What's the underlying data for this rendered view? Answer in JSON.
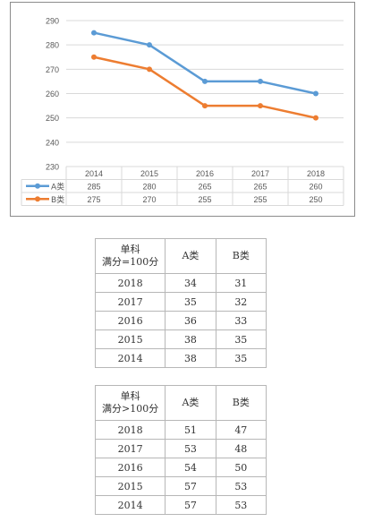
{
  "chart_data": {
    "type": "line",
    "categories": [
      "2014",
      "2015",
      "2016",
      "2017",
      "2018"
    ],
    "series": [
      {
        "name": "A类",
        "values": [
          285,
          280,
          265,
          265,
          260
        ],
        "color": "#5b9bd5"
      },
      {
        "name": "B类",
        "values": [
          275,
          270,
          255,
          255,
          250
        ],
        "color": "#ed7d31"
      }
    ],
    "ylim": [
      230,
      290
    ],
    "yticks": [
      230,
      240,
      250,
      260,
      270,
      280,
      290
    ],
    "grid": true,
    "legend": "data table below chart"
  },
  "tables": [
    {
      "header": [
        "单科\n满分=100分",
        "A类",
        "B类"
      ],
      "rows": [
        [
          "2018",
          "34",
          "31"
        ],
        [
          "2017",
          "35",
          "32"
        ],
        [
          "2016",
          "36",
          "33"
        ],
        [
          "2015",
          "38",
          "35"
        ],
        [
          "2014",
          "38",
          "35"
        ]
      ]
    },
    {
      "header": [
        "单科\n满分>100分",
        "A类",
        "B类"
      ],
      "rows": [
        [
          "2018",
          "51",
          "47"
        ],
        [
          "2017",
          "53",
          "48"
        ],
        [
          "2016",
          "54",
          "50"
        ],
        [
          "2015",
          "57",
          "53"
        ],
        [
          "2014",
          "57",
          "53"
        ]
      ]
    }
  ]
}
